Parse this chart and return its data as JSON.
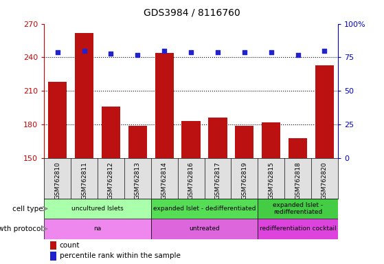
{
  "title": "GDS3984 / 8116760",
  "samples": [
    "GSM762810",
    "GSM762811",
    "GSM762812",
    "GSM762813",
    "GSM762814",
    "GSM762816",
    "GSM762817",
    "GSM762819",
    "GSM762815",
    "GSM762818",
    "GSM762820"
  ],
  "counts": [
    218,
    262,
    196,
    179,
    244,
    183,
    186,
    179,
    182,
    168,
    233
  ],
  "percentile_ranks": [
    79,
    80,
    78,
    77,
    80,
    79,
    79,
    79,
    79,
    77,
    80
  ],
  "ylim_left": [
    150,
    270
  ],
  "ylim_right": [
    0,
    100
  ],
  "yticks_left": [
    150,
    180,
    210,
    240,
    270
  ],
  "yticks_right": [
    0,
    25,
    50,
    75,
    100
  ],
  "bar_color": "#bb1111",
  "dot_color": "#2222cc",
  "cell_type_groups": [
    {
      "label": "uncultured Islets",
      "start": 0,
      "end": 4,
      "color": "#aaffaa"
    },
    {
      "label": "expanded Islet - dedifferentiated",
      "start": 4,
      "end": 8,
      "color": "#55dd55"
    },
    {
      "label": "expanded Islet -\nredifferentiated",
      "start": 8,
      "end": 11,
      "color": "#44cc44"
    }
  ],
  "growth_protocol_groups": [
    {
      "label": "na",
      "start": 0,
      "end": 4,
      "color": "#ee88ee"
    },
    {
      "label": "untreated",
      "start": 4,
      "end": 8,
      "color": "#dd66dd"
    },
    {
      "label": "redifferentiation cocktail",
      "start": 8,
      "end": 11,
      "color": "#dd44dd"
    }
  ],
  "cell_type_label": "cell type",
  "growth_protocol_label": "growth protocol",
  "legend_count_label": "count",
  "legend_pct_label": "percentile rank within the sample",
  "dotted_line_color": "#000000",
  "tick_label_color_left": "#cc0000",
  "tick_label_color_right": "#0000cc",
  "bar_width": 0.7,
  "dot_size": 20
}
